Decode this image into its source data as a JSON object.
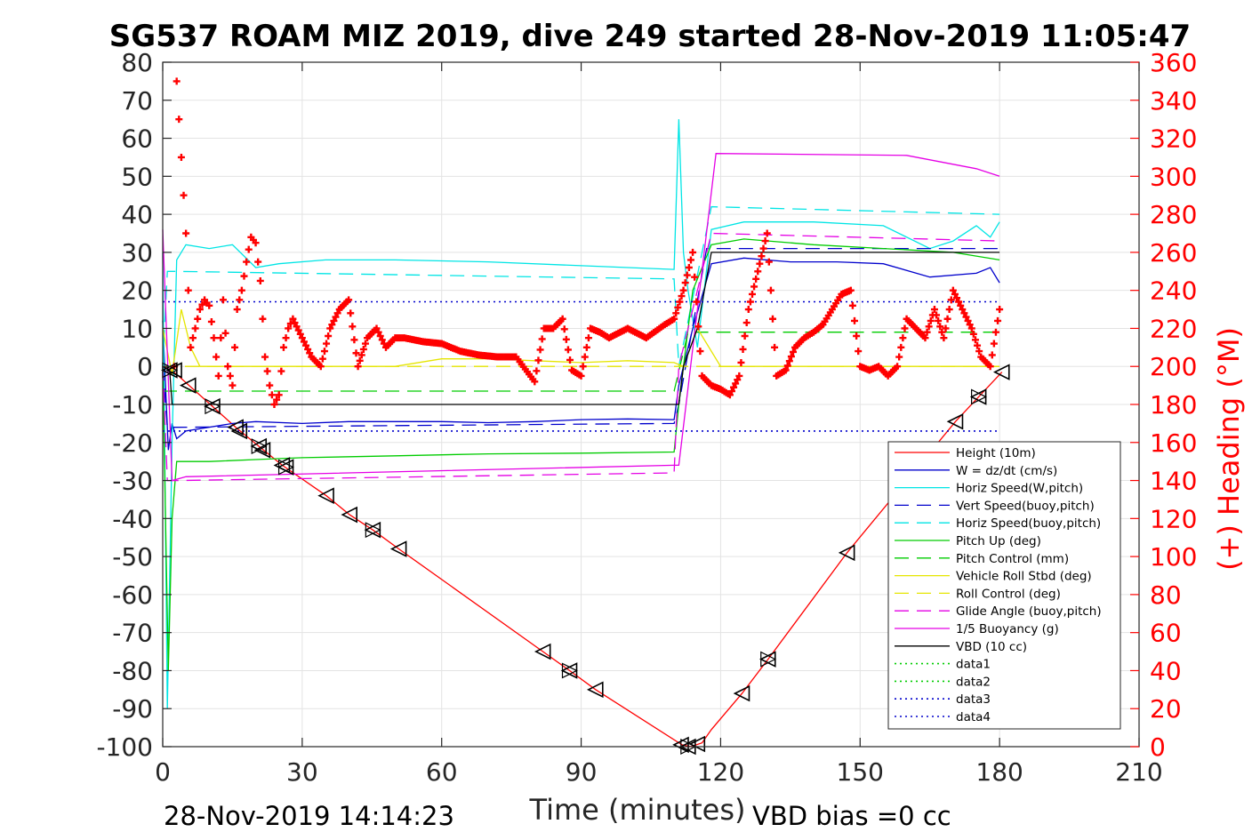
{
  "chart_data": {
    "type": "line",
    "title": "SG537 ROAM MIZ 2019, dive 249 started 28-Nov-2019 11:05:47",
    "xlabel": "Time (minutes)",
    "ylabel_right": "(+) Heading (°M)",
    "footer_left": "28-Nov-2019 14:14:23",
    "footer_right": "VBD bias =0 cc",
    "xlim": [
      0,
      210
    ],
    "ylim": [
      -100,
      80
    ],
    "ylim_right": [
      0,
      360
    ],
    "xticks": [
      "0",
      "30",
      "60",
      "90",
      "120",
      "150",
      "180",
      "210"
    ],
    "yticks": [
      "80",
      "70",
      "60",
      "50",
      "40",
      "30",
      "20",
      "10",
      "0",
      "-10",
      "-20",
      "-30",
      "-40",
      "-50",
      "-60",
      "-70",
      "-80",
      "-90",
      "-100"
    ],
    "yticks_right": [
      "360",
      "340",
      "320",
      "300",
      "280",
      "260",
      "240",
      "220",
      "200",
      "180",
      "160",
      "140",
      "120",
      "100",
      "80",
      "60",
      "40",
      "20",
      "0"
    ],
    "grid": true,
    "legend_position": "bottom-right",
    "colors": {
      "red": "#ff0000",
      "blue": "#0000cc",
      "cyan": "#00e5e5",
      "green": "#00cc00",
      "yellow": "#e5e500",
      "magenta": "#e500e5",
      "black": "#000000",
      "axis": "#262626"
    },
    "series": [
      {
        "name": "Height (10m)",
        "color": "#ff0000",
        "style": "solid",
        "x": [
          0,
          2,
          10.7,
          15.7,
          20.7,
          25.7,
          35.2,
          40.2,
          45.2,
          50.8,
          81.8,
          87.5,
          93.1,
          111.7,
          113.6,
          116,
          118,
          124.6,
          130.2,
          147.2,
          170.5,
          175.5,
          180.5
        ],
        "y": [
          0,
          -1,
          -10.5,
          -16,
          -21,
          -26,
          -34,
          -39,
          -43,
          -48,
          -75,
          -80,
          -85,
          -99.5,
          -100,
          -99,
          -95.5,
          -86,
          -77,
          -49,
          -14.5,
          -8,
          -1.5
        ]
      },
      {
        "name": "W = dz/dt (cm/s)",
        "color": "#0000cc",
        "style": "solid",
        "x": [
          0,
          1.2,
          2,
          3,
          5,
          15,
          20,
          30,
          40,
          50,
          60,
          70,
          80,
          90,
          100,
          110,
          111,
          114,
          118,
          125,
          135,
          145,
          155,
          165,
          175,
          178,
          180
        ],
        "y": [
          12,
          -22,
          -15,
          -19,
          -17,
          -15,
          -14.5,
          -15,
          -14.5,
          -14.5,
          -14.5,
          -14.8,
          -14.5,
          -14,
          -13.8,
          -14,
          -5,
          10,
          27,
          28.5,
          27.5,
          27.5,
          27,
          23.5,
          24.5,
          26,
          22
        ]
      },
      {
        "name": "Horiz Speed(W,pitch)",
        "color": "#00e5e5",
        "style": "solid",
        "x": [
          0,
          1,
          2,
          3,
          5,
          10,
          15,
          20,
          25,
          35,
          50,
          70,
          90,
          110,
          111,
          112,
          113,
          115,
          118,
          125,
          140,
          155,
          165,
          170,
          175,
          178,
          180
        ],
        "y": [
          30,
          -90,
          -20,
          28,
          32,
          31,
          32,
          26,
          27,
          28,
          28,
          27.5,
          26.5,
          25.5,
          65,
          30,
          20,
          5,
          36,
          38,
          38,
          37,
          31,
          33,
          37,
          34,
          38
        ]
      },
      {
        "name": "Vert Speed(buoy,pitch)",
        "color": "#0000cc",
        "style": "dashed",
        "x": [
          0,
          1,
          3,
          110,
          111,
          117,
          180
        ],
        "y": [
          0,
          -16,
          -16,
          -15,
          -10,
          31,
          31
        ]
      },
      {
        "name": "Horiz Speed(buoy,pitch)",
        "color": "#00e5e5",
        "style": "dashed",
        "x": [
          0,
          1,
          3,
          110,
          111,
          118,
          180
        ],
        "y": [
          0,
          25,
          25,
          23,
          0,
          42,
          40
        ]
      },
      {
        "name": "Pitch Up (deg)",
        "color": "#00cc00",
        "style": "solid",
        "x": [
          0,
          1.2,
          2,
          3,
          10,
          20,
          30,
          50,
          70,
          90,
          110,
          111,
          114,
          118,
          125,
          140,
          155,
          170,
          180
        ],
        "y": [
          0,
          -80,
          -40,
          -25,
          -25,
          -24.5,
          -24,
          -23.5,
          -23,
          -22.8,
          -22.5,
          -10,
          20,
          32,
          33.5,
          32,
          31,
          30,
          28
        ]
      },
      {
        "name": "Pitch Control (mm)",
        "color": "#00cc00",
        "style": "dashed",
        "x": [
          0,
          3,
          110,
          113,
          180
        ],
        "y": [
          -6.5,
          -6.5,
          -6.5,
          9,
          9
        ]
      },
      {
        "name": "Vehicle Roll Stbd (deg)",
        "color": "#e5e500",
        "style": "solid",
        "x": [
          0,
          2,
          4,
          6,
          8,
          10,
          20,
          30,
          40,
          50,
          60,
          70,
          80,
          90,
          100,
          110,
          112,
          115,
          120,
          130,
          140,
          150,
          160,
          170,
          175,
          180
        ],
        "y": [
          10,
          -2,
          15,
          5,
          0,
          0,
          0,
          0,
          0,
          0,
          2,
          2,
          1.5,
          1,
          1.5,
          1,
          0,
          10,
          0,
          0,
          0,
          0,
          0,
          0,
          0,
          0
        ]
      },
      {
        "name": "Roll Control (deg)",
        "color": "#e5e500",
        "style": "dashed",
        "x": [
          0,
          180
        ],
        "y": [
          0,
          0
        ]
      },
      {
        "name": "Glide Angle (buoy,pitch)",
        "color": "#e500e5",
        "style": "dashed",
        "x": [
          0,
          1,
          3,
          110,
          111,
          118,
          180
        ],
        "y": [
          0,
          -30,
          -30,
          -28,
          0,
          35,
          33
        ]
      },
      {
        "name": "1/5 Buoyancy (g)",
        "color": "#e500e5",
        "style": "solid",
        "x": [
          0,
          2,
          5,
          110,
          111,
          119,
          160,
          175,
          180
        ],
        "y": [
          36,
          -30,
          -29,
          -26,
          -26,
          56,
          55.5,
          52,
          50
        ]
      },
      {
        "name": "VBD (10 cc)",
        "color": "#000000",
        "style": "solid",
        "x": [
          0,
          1.5,
          2,
          111,
          112,
          115,
          118,
          180
        ],
        "y": [
          0,
          -1,
          -10,
          -10,
          0,
          10,
          30,
          30
        ]
      },
      {
        "name": "data1",
        "color": "#00cc00",
        "style": "dotted",
        "x": [],
        "y": []
      },
      {
        "name": "data2",
        "color": "#00cc00",
        "style": "dotted",
        "x": [],
        "y": []
      },
      {
        "name": "data3",
        "color": "#0000cc",
        "style": "dotted",
        "x": [
          0,
          180
        ],
        "y": [
          17,
          17
        ]
      },
      {
        "name": "data4",
        "color": "#0000cc",
        "style": "dotted",
        "x": [
          0,
          180
        ],
        "y": [
          -17,
          -17
        ]
      }
    ],
    "heading": {
      "color": "#ff0000",
      "x": [
        2.5,
        3,
        3.5,
        4,
        4.5,
        5,
        5.5,
        6,
        7,
        8,
        9,
        10,
        11,
        12,
        13,
        14,
        15,
        16,
        17,
        18,
        19,
        20,
        21,
        22,
        23,
        24,
        25,
        26,
        27,
        28,
        30,
        32,
        34,
        36,
        38,
        40,
        42,
        44,
        46,
        48,
        50,
        52,
        56,
        60,
        64,
        68,
        72,
        76,
        80,
        82,
        84,
        86,
        88,
        90,
        92,
        94,
        96,
        100,
        104,
        108,
        110,
        112,
        114,
        116,
        118,
        120,
        122,
        124,
        126,
        128,
        130,
        132,
        134,
        136,
        138,
        140,
        142,
        144,
        146,
        148,
        150,
        152,
        154,
        156,
        158,
        160,
        162,
        164,
        166,
        168,
        170,
        172,
        174,
        176,
        178,
        180
      ],
      "y": [
        200,
        350,
        330,
        310,
        290,
        270,
        240,
        210,
        220,
        230,
        235,
        232,
        215,
        195,
        235,
        200,
        190,
        230,
        240,
        255,
        268,
        265,
        245,
        205,
        190,
        180,
        185,
        210,
        220,
        225,
        215,
        205,
        200,
        220,
        230,
        235,
        200,
        215,
        220,
        210,
        215,
        215,
        213,
        212,
        208,
        206,
        205,
        205,
        192,
        220,
        220,
        225,
        198,
        195,
        220,
        218,
        215,
        220,
        215,
        222,
        225,
        240,
        260,
        195,
        190,
        188,
        185,
        195,
        230,
        250,
        270,
        195,
        198,
        210,
        215,
        218,
        222,
        230,
        238,
        240,
        200,
        198,
        200,
        195,
        200,
        225,
        220,
        215,
        230,
        215,
        240,
        230,
        220,
        205,
        200,
        230
      ]
    },
    "markers": {
      "color": "#000000",
      "x": [
        1.5,
        2.5,
        5.5,
        10.7,
        15.7,
        16.5,
        20.7,
        21.5,
        25.7,
        26.5,
        35.2,
        40.2,
        45.2,
        50.8,
        81.8,
        87.5,
        93.1,
        111.5,
        113,
        115,
        124.6,
        130.2,
        147.2,
        170.5,
        175.5,
        180.5
      ],
      "y": [
        -1,
        -1,
        -5,
        -10.5,
        -16,
        -17,
        -21,
        -22,
        -26,
        -26.5,
        -34,
        -39,
        -43,
        -48,
        -75,
        -80,
        -85,
        -99.5,
        -100,
        -99.3,
        -86,
        -77,
        -49,
        -14.5,
        -8,
        -1.5
      ]
    }
  }
}
